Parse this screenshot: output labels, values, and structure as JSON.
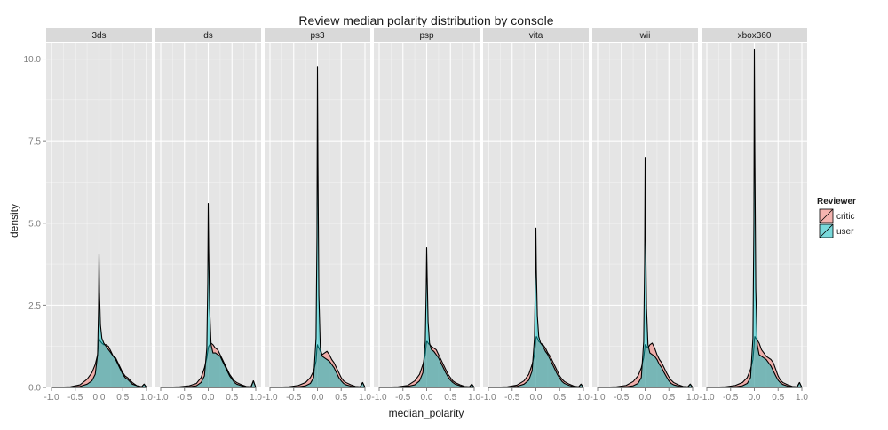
{
  "chart_data": {
    "type": "area",
    "title": "Review median polarity distribution by console",
    "xlabel": "median_polarity",
    "ylabel": "density",
    "xlim": [
      -1.0,
      1.0
    ],
    "ylim": [
      0.0,
      10.5
    ],
    "x_ticks": [
      -1.0,
      -0.5,
      0.0,
      0.5,
      1.0
    ],
    "x_tick_labels": [
      "-1.0",
      "-0.5",
      "0.0",
      "0.5",
      "1.0"
    ],
    "y_ticks": [
      0.0,
      2.5,
      5.0,
      7.5,
      10.0
    ],
    "y_tick_labels": [
      "0.0",
      "2.5",
      "5.0",
      "7.5",
      "10.0"
    ],
    "grid": true,
    "legend": {
      "title": "Reviewer",
      "position": "right",
      "entries": [
        {
          "label": "critic",
          "color": "#F8766D"
        },
        {
          "label": "user",
          "color": "#00BFC4"
        }
      ]
    },
    "x": [
      -1.0,
      -0.6,
      -0.4,
      -0.25,
      -0.15,
      -0.08,
      -0.03,
      -0.01,
      0.0,
      0.01,
      0.03,
      0.06,
      0.1,
      0.15,
      0.2,
      0.25,
      0.3,
      0.35,
      0.4,
      0.45,
      0.5,
      0.55,
      0.6,
      0.7,
      0.8,
      0.9,
      0.95,
      1.0
    ],
    "panels": [
      {
        "name": "3ds",
        "series": [
          {
            "name": "critic",
            "values": [
              0,
              0.02,
              0.08,
              0.25,
              0.45,
              0.7,
              1.0,
              1.35,
              1.5,
              1.45,
              1.4,
              1.35,
              1.3,
              1.3,
              1.25,
              1.1,
              0.95,
              0.9,
              0.75,
              0.6,
              0.45,
              0.35,
              0.3,
              0.15,
              0.05,
              0.02,
              0.1,
              0.0
            ]
          },
          {
            "name": "user",
            "values": [
              0,
              0.01,
              0.03,
              0.1,
              0.2,
              0.4,
              1.0,
              2.4,
              4.05,
              2.9,
              1.9,
              1.5,
              1.35,
              1.25,
              1.15,
              1.05,
              0.95,
              0.85,
              0.7,
              0.55,
              0.4,
              0.3,
              0.25,
              0.1,
              0.05,
              0.02,
              0.1,
              0.0
            ]
          }
        ]
      },
      {
        "name": "ds",
        "series": [
          {
            "name": "critic",
            "values": [
              0,
              0.02,
              0.05,
              0.12,
              0.3,
              0.6,
              0.9,
              1.1,
              1.2,
              1.25,
              1.3,
              1.35,
              1.3,
              1.2,
              1.15,
              1.0,
              0.85,
              0.7,
              0.55,
              0.4,
              0.3,
              0.2,
              0.15,
              0.08,
              0.03,
              0.02,
              0.2,
              0.0
            ]
          },
          {
            "name": "user",
            "values": [
              0,
              0.01,
              0.02,
              0.05,
              0.15,
              0.35,
              1.2,
              3.2,
              5.6,
              4.2,
              2.4,
              1.3,
              1.05,
              1.05,
              1.0,
              0.95,
              0.8,
              0.65,
              0.5,
              0.35,
              0.25,
              0.15,
              0.1,
              0.05,
              0.02,
              0.01,
              0.2,
              0.0
            ]
          }
        ]
      },
      {
        "name": "ps3",
        "series": [
          {
            "name": "critic",
            "values": [
              0,
              0.02,
              0.06,
              0.15,
              0.3,
              0.5,
              0.8,
              1.2,
              1.3,
              1.25,
              1.2,
              1.1,
              1.0,
              1.05,
              1.1,
              1.0,
              0.85,
              0.75,
              0.6,
              0.45,
              0.3,
              0.2,
              0.15,
              0.08,
              0.03,
              0.02,
              0.15,
              0.0
            ]
          },
          {
            "name": "user",
            "values": [
              0,
              0.01,
              0.02,
              0.05,
              0.12,
              0.3,
              1.5,
              4.6,
              9.75,
              6.8,
              2.8,
              1.2,
              0.95,
              0.9,
              0.85,
              0.8,
              0.7,
              0.6,
              0.45,
              0.3,
              0.2,
              0.12,
              0.08,
              0.04,
              0.02,
              0.01,
              0.15,
              0.0
            ]
          }
        ]
      },
      {
        "name": "psp",
        "series": [
          {
            "name": "critic",
            "values": [
              0,
              0.02,
              0.06,
              0.2,
              0.4,
              0.7,
              1.0,
              1.3,
              1.4,
              1.4,
              1.35,
              1.3,
              1.25,
              1.2,
              1.15,
              1.0,
              0.85,
              0.7,
              0.55,
              0.4,
              0.3,
              0.2,
              0.15,
              0.08,
              0.03,
              0.02,
              0.1,
              0.0
            ]
          },
          {
            "name": "user",
            "values": [
              0,
              0.01,
              0.03,
              0.08,
              0.2,
              0.45,
              1.4,
              3.0,
              4.25,
              3.4,
              2.0,
              1.35,
              1.15,
              1.1,
              1.0,
              0.9,
              0.75,
              0.6,
              0.45,
              0.32,
              0.22,
              0.15,
              0.1,
              0.05,
              0.02,
              0.01,
              0.1,
              0.0
            ]
          }
        ]
      },
      {
        "name": "vita",
        "series": [
          {
            "name": "critic",
            "values": [
              0,
              0.02,
              0.07,
              0.2,
              0.4,
              0.7,
              1.0,
              1.3,
              1.5,
              1.55,
              1.5,
              1.4,
              1.35,
              1.3,
              1.2,
              1.05,
              0.95,
              0.8,
              0.65,
              0.5,
              0.35,
              0.25,
              0.18,
              0.1,
              0.04,
              0.02,
              0.1,
              0.0
            ]
          },
          {
            "name": "user",
            "values": [
              0,
              0.01,
              0.03,
              0.1,
              0.22,
              0.5,
              1.5,
              3.4,
              4.85,
              3.6,
              2.2,
              1.55,
              1.35,
              1.25,
              1.1,
              1.0,
              0.85,
              0.7,
              0.55,
              0.4,
              0.28,
              0.18,
              0.12,
              0.06,
              0.02,
              0.01,
              0.1,
              0.0
            ]
          }
        ]
      },
      {
        "name": "wii",
        "series": [
          {
            "name": "critic",
            "values": [
              0,
              0.02,
              0.06,
              0.18,
              0.35,
              0.6,
              0.9,
              1.15,
              1.3,
              1.3,
              1.25,
              1.2,
              1.3,
              1.35,
              1.2,
              1.0,
              0.85,
              0.75,
              0.6,
              0.45,
              0.32,
              0.22,
              0.15,
              0.08,
              0.03,
              0.02,
              0.1,
              0.0
            ]
          },
          {
            "name": "user",
            "values": [
              0,
              0.01,
              0.02,
              0.05,
              0.12,
              0.3,
              1.4,
              3.8,
              7.0,
              4.8,
              2.4,
              1.3,
              1.05,
              1.0,
              0.95,
              0.85,
              0.7,
              0.6,
              0.45,
              0.32,
              0.2,
              0.12,
              0.08,
              0.04,
              0.02,
              0.01,
              0.1,
              0.0
            ]
          }
        ]
      },
      {
        "name": "xbox360",
        "series": [
          {
            "name": "critic",
            "values": [
              0,
              0.02,
              0.06,
              0.15,
              0.3,
              0.55,
              0.85,
              1.2,
              1.45,
              1.55,
              1.5,
              1.45,
              1.35,
              1.15,
              1.05,
              0.95,
              0.9,
              0.85,
              0.75,
              0.55,
              0.35,
              0.22,
              0.15,
              0.08,
              0.03,
              0.02,
              0.15,
              0.0
            ]
          },
          {
            "name": "user",
            "values": [
              0,
              0.01,
              0.02,
              0.05,
              0.12,
              0.3,
              1.5,
              5.0,
              10.3,
              7.2,
              3.0,
              1.3,
              1.0,
              0.95,
              0.9,
              0.85,
              0.75,
              0.65,
              0.5,
              0.35,
              0.22,
              0.14,
              0.09,
              0.04,
              0.02,
              0.01,
              0.15,
              0.0
            ]
          }
        ]
      }
    ]
  }
}
